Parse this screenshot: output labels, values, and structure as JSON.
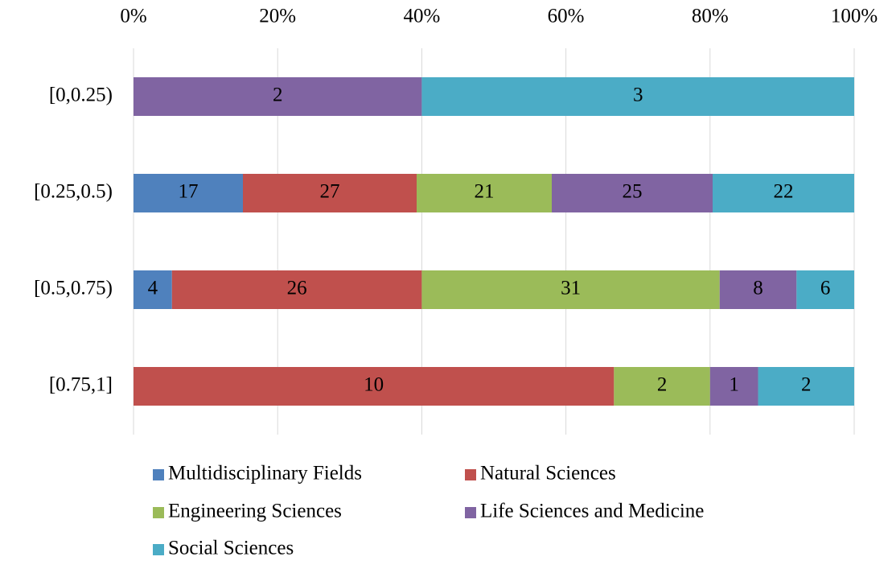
{
  "chart_data": {
    "type": "bar",
    "orientation": "horizontal",
    "stacking": "percent",
    "categories": [
      "[0,0.25)",
      "[0.25,0.5)",
      "[0.5,0.75)",
      "[0.75,1]"
    ],
    "series": [
      {
        "name": "Multidisciplinary Fields",
        "color": "#4f81bd",
        "values": [
          null,
          17,
          4,
          null
        ]
      },
      {
        "name": "Natural Sciences",
        "color": "#c0504d",
        "values": [
          null,
          27,
          26,
          10
        ]
      },
      {
        "name": "Engineering Sciences",
        "color": "#9bbb59",
        "values": [
          null,
          21,
          31,
          2
        ]
      },
      {
        "name": "Life Sciences and Medicine",
        "color": "#8064a2",
        "values": [
          2,
          25,
          8,
          1
        ]
      },
      {
        "name": "Social Sciences",
        "color": "#4bacc6",
        "values": [
          3,
          22,
          6,
          2
        ]
      }
    ],
    "xlim": [
      0,
      100
    ],
    "xticks": [
      {
        "value": 0,
        "label": "0%"
      },
      {
        "value": 20,
        "label": "20%"
      },
      {
        "value": 40,
        "label": "40%"
      },
      {
        "value": 60,
        "label": "60%"
      },
      {
        "value": 80,
        "label": "80%"
      },
      {
        "value": 100,
        "label": "100%"
      }
    ],
    "grid": true,
    "legend": "bottom"
  }
}
